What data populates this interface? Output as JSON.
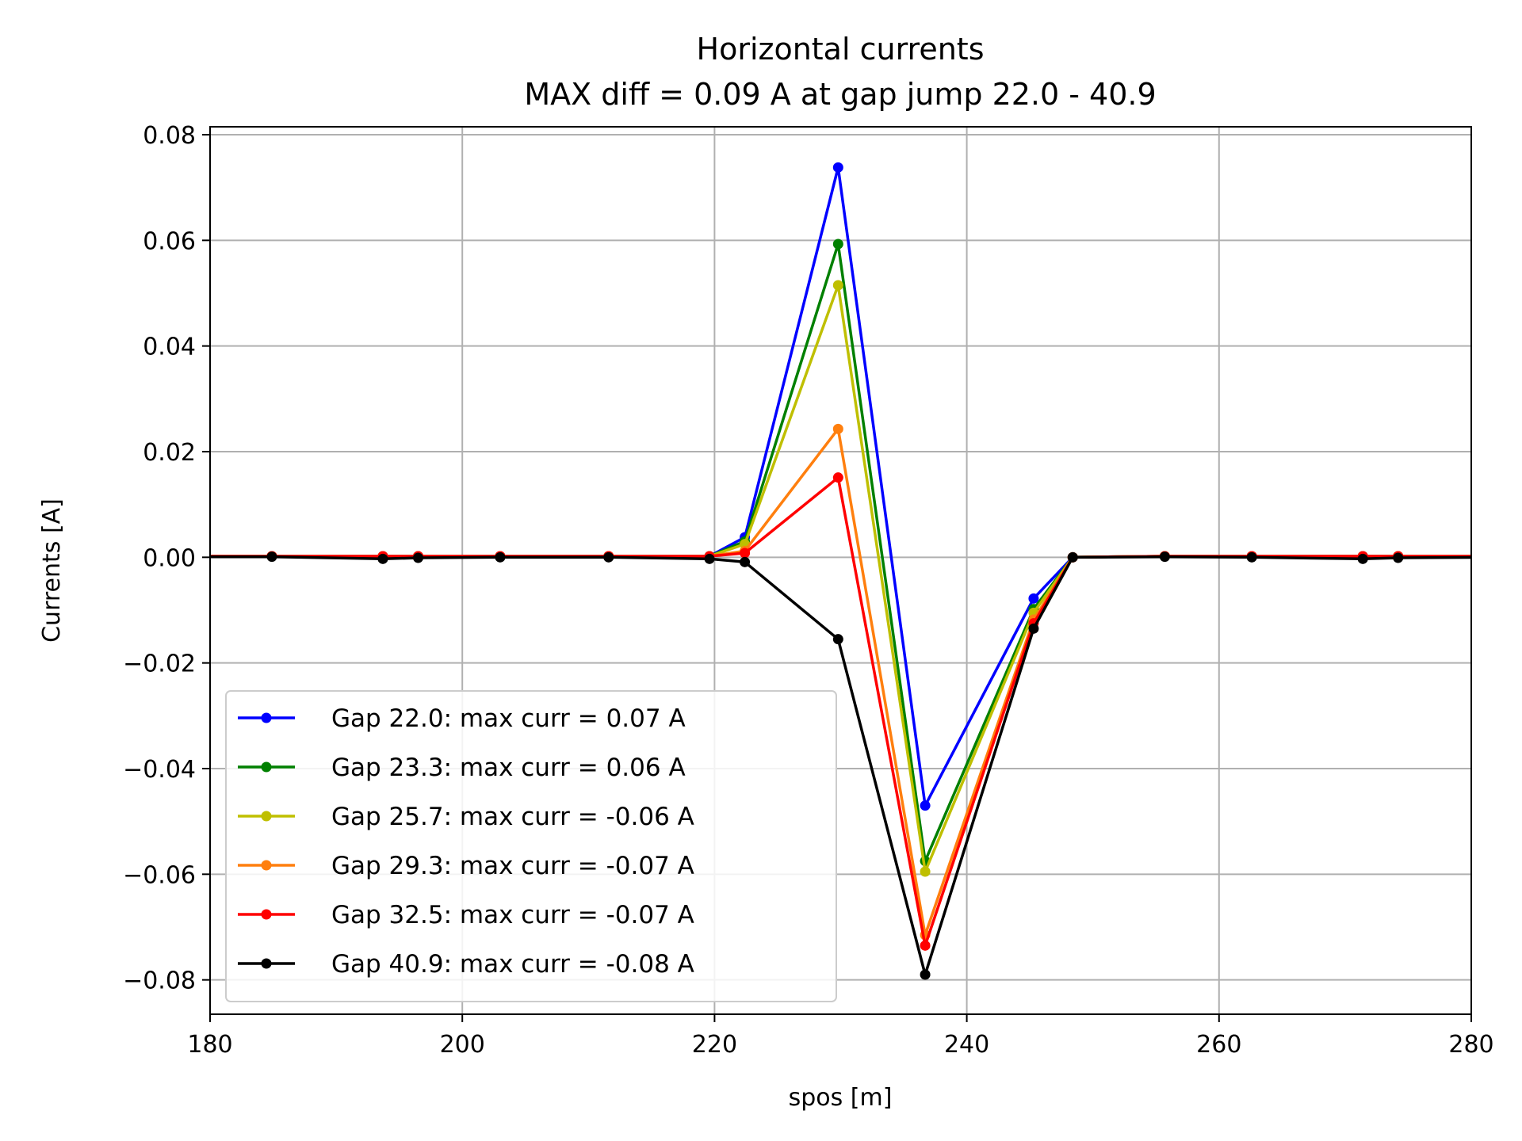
{
  "chart_data": {
    "type": "line",
    "title": "Horizontal currents",
    "subtitle": "MAX diff = 0.09 A at gap jump 22.0 - 40.9",
    "xlabel": "spos [m]",
    "ylabel": "Currents [A]",
    "xlim": [
      180,
      280
    ],
    "ylim": [
      -0.0865,
      0.0815
    ],
    "grid": true,
    "legend_position": "lower-left",
    "x_tick_labels": [
      "180",
      "200",
      "220",
      "240",
      "260",
      "280"
    ],
    "x_tick_values": [
      180,
      200,
      220,
      240,
      260,
      280
    ],
    "y_tick_labels": [
      "0.08",
      "0.06",
      "0.04",
      "0.02",
      "0.00",
      "−0.02",
      "−0.04",
      "−0.06",
      "−0.08"
    ],
    "y_tick_values": [
      0.08,
      0.06,
      0.04,
      0.02,
      0.0,
      -0.02,
      -0.04,
      -0.06,
      -0.08
    ],
    "x": [
      176.0,
      184.9,
      193.7,
      196.5,
      203.0,
      211.6,
      219.6,
      222.4,
      229.8,
      236.7,
      245.3,
      248.4,
      255.7,
      262.6,
      271.4,
      274.2,
      283.0
    ],
    "series": [
      {
        "name": "Gap 22.0: max curr = 0.07 A",
        "color": "#0000ff",
        "values": [
          0.0002,
          0.0002,
          0.0002,
          0.0002,
          0.0002,
          0.0002,
          0.0002,
          0.0038,
          0.0738,
          -0.047,
          -0.0078,
          0.0,
          0.0002,
          0.0002,
          0.0002,
          0.0002,
          0.0002
        ]
      },
      {
        "name": "Gap 23.3: max curr = 0.06 A",
        "color": "#008000",
        "values": [
          0.0002,
          0.0002,
          0.0002,
          0.0002,
          0.0002,
          0.0002,
          0.0002,
          0.003,
          0.0593,
          -0.0575,
          -0.0098,
          0.0,
          0.0002,
          0.0002,
          0.0002,
          0.0002,
          0.0002
        ]
      },
      {
        "name": "Gap 25.7: max curr = -0.06 A",
        "color": "#bfbf00",
        "values": [
          0.0002,
          0.0002,
          0.0002,
          0.0002,
          0.0002,
          0.0002,
          0.0002,
          0.0025,
          0.0515,
          -0.0595,
          -0.0105,
          0.0,
          0.0002,
          0.0002,
          0.0002,
          0.0002,
          0.0002
        ]
      },
      {
        "name": "Gap 29.3: max curr = -0.07 A",
        "color": "#ff7f0e",
        "values": [
          0.0002,
          0.0002,
          0.0002,
          0.0002,
          0.0002,
          0.0002,
          0.0002,
          0.0012,
          0.0243,
          -0.0715,
          -0.0118,
          0.0,
          0.0002,
          0.0002,
          0.0002,
          0.0002,
          0.0002
        ]
      },
      {
        "name": "Gap 32.5: max curr = -0.07 A",
        "color": "#ff0000",
        "values": [
          0.0002,
          0.0002,
          0.0002,
          0.0002,
          0.0002,
          0.0002,
          0.0002,
          0.0008,
          0.0151,
          -0.0735,
          -0.0125,
          0.0,
          0.0002,
          0.0002,
          0.0002,
          0.0002,
          0.0002
        ]
      },
      {
        "name": "Gap 40.9: max curr = -0.08 A",
        "color": "#000000",
        "values": [
          0.0001,
          0.0001,
          -0.0003,
          -0.0001,
          0.0,
          0.0,
          -0.0003,
          -0.0009,
          -0.0155,
          -0.079,
          -0.0135,
          0.0,
          0.0001,
          0.0,
          -0.0003,
          -0.0001,
          0.0
        ]
      }
    ]
  }
}
